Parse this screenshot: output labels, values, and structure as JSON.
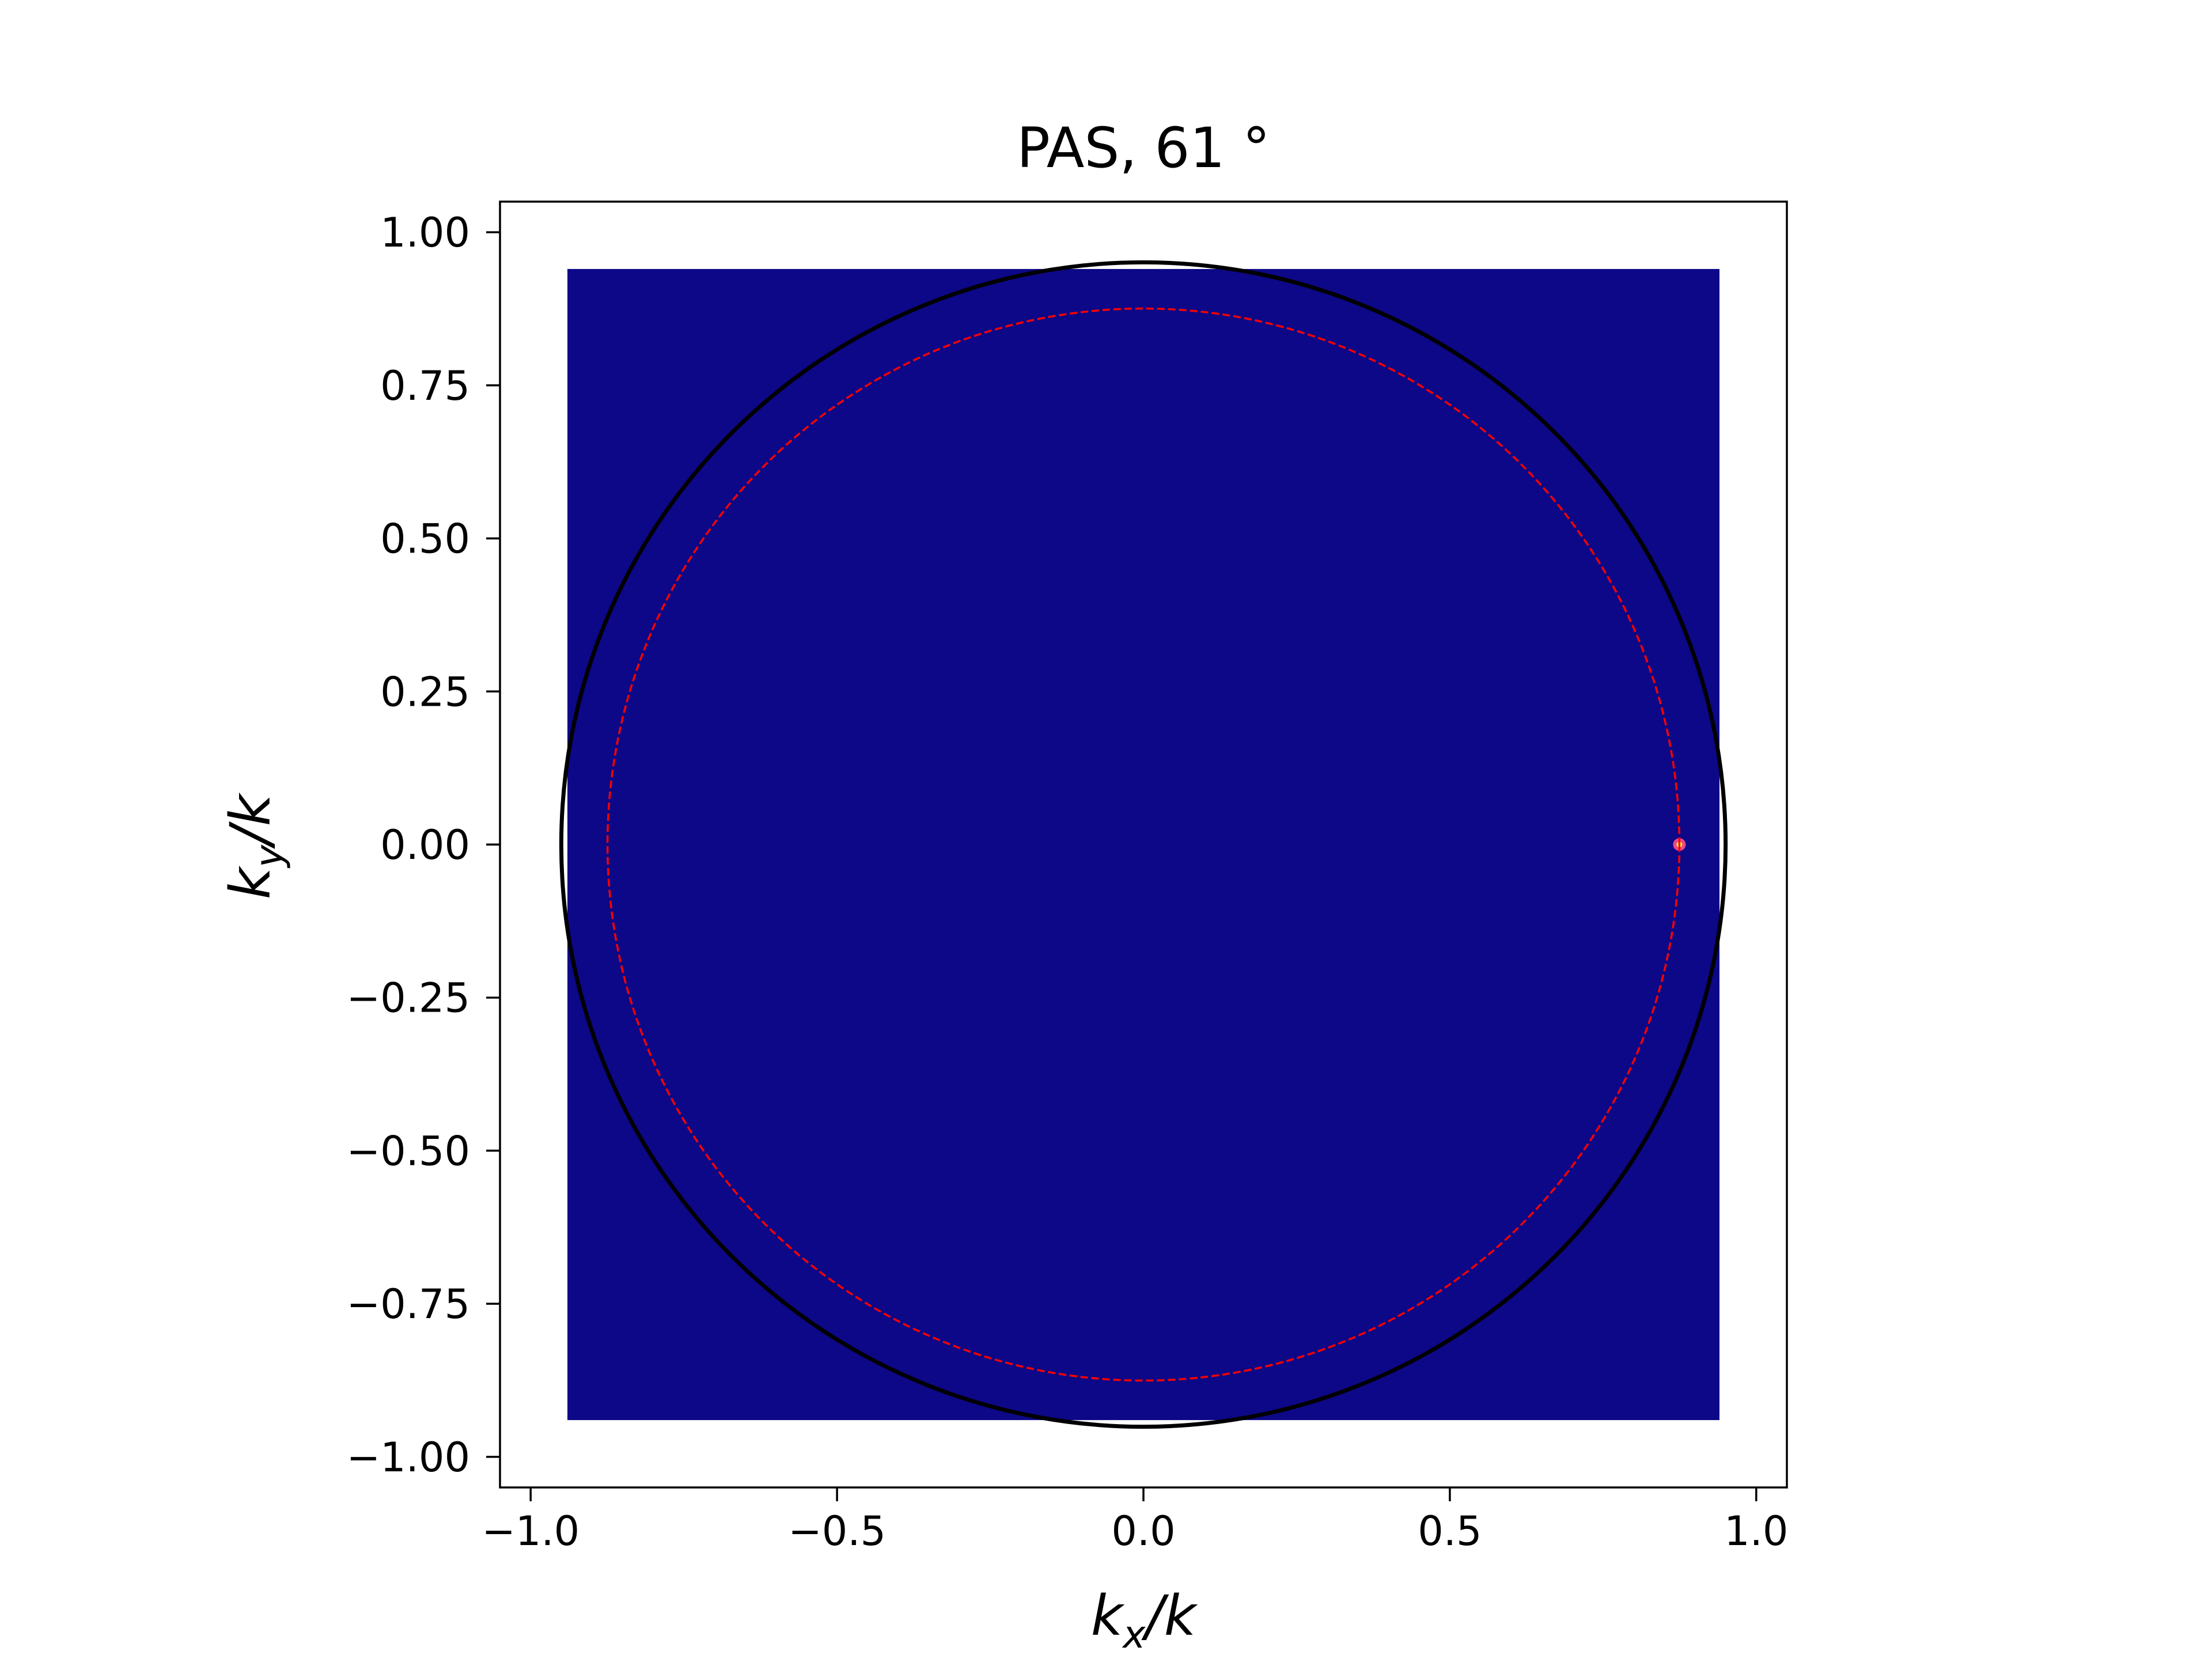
{
  "chart_data": {
    "type": "heatmap",
    "title": "PAS, 61 °",
    "xlabel": {
      "main": "k",
      "sub": "x",
      "suffix": "/k"
    },
    "ylabel": {
      "main": "k",
      "sub": "y",
      "suffix": "/k"
    },
    "xlim": [
      -1.05,
      1.05
    ],
    "ylim": [
      -1.05,
      1.05
    ],
    "grid": false,
    "legend": "none",
    "x_ticks": [
      -1.0,
      -0.5,
      0.0,
      0.5,
      1.0
    ],
    "x_tick_labels": [
      "−1.0",
      "−0.5",
      "0.0",
      "0.5",
      "1.0"
    ],
    "y_ticks": [
      1.0,
      0.75,
      0.5,
      0.25,
      0.0,
      -0.25,
      -0.5,
      -0.75,
      -1.0
    ],
    "y_tick_labels": [
      "1.00",
      "0.75",
      "0.50",
      "0.25",
      "0.00",
      "−0.25",
      "−0.50",
      "−0.75",
      "−1.00"
    ],
    "heatmap_extent": {
      "xmin": -0.94,
      "xmax": 0.94,
      "ymin": -0.94,
      "ymax": 0.94
    },
    "heatmap_background_value": 0,
    "colormap": "plasma",
    "colors": {
      "low": "#0d0887",
      "peak": "#f0f921",
      "circle": "#000000",
      "dashed_circle": "#ff0000"
    },
    "circles": [
      {
        "name": "unit-circle",
        "center": [
          0,
          0
        ],
        "radius": 0.95,
        "style": "solid"
      },
      {
        "name": "dashed-circle",
        "center": [
          0,
          0
        ],
        "radius": 0.8746,
        "style": "dashed"
      }
    ],
    "peak": {
      "x": 0.8746,
      "y": 0.0
    }
  }
}
